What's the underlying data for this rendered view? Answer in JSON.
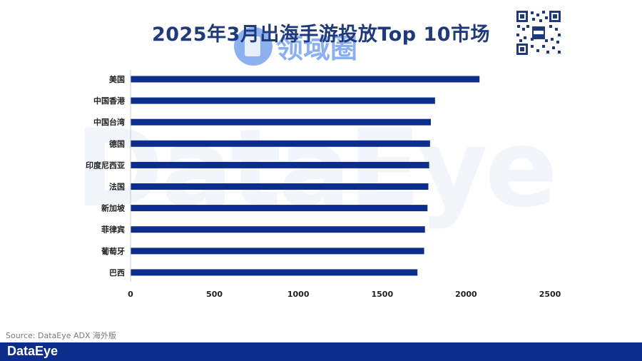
{
  "title": "2025年3月出海手游投放Top 10市场",
  "watermark": {
    "center": "领域圈",
    "background": "DataEye"
  },
  "source": "Source: DataEye ADX 海外版",
  "brand": "DataEye",
  "chart_data": {
    "type": "bar",
    "orientation": "horizontal",
    "categories": [
      "美国",
      "中国香港",
      "中国台湾",
      "德国",
      "印度尼西亚",
      "法国",
      "新加坡",
      "菲律宾",
      "葡萄牙",
      "巴西"
    ],
    "values": [
      2080,
      1815,
      1790,
      1785,
      1780,
      1775,
      1770,
      1755,
      1750,
      1710
    ],
    "xlim": [
      0,
      2500
    ],
    "xticks": [
      0,
      500,
      1000,
      1500,
      2000,
      2500
    ],
    "bar_color": "#0d2d8c",
    "grid": false,
    "legend": "none"
  }
}
